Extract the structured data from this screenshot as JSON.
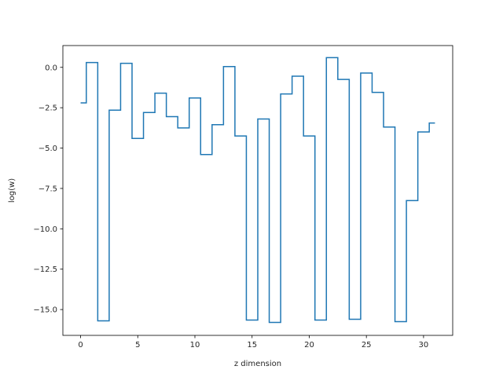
{
  "chart_data": {
    "type": "line",
    "drawstyle": "steps-mid",
    "title": "",
    "xlabel": "z dimension",
    "ylabel": "log(w)",
    "xlim": [
      -1.55,
      32.55
    ],
    "ylim": [
      -16.6,
      1.35
    ],
    "xticks": [
      0,
      5,
      10,
      15,
      20,
      25,
      30
    ],
    "xtick_labels": [
      "0",
      "5",
      "10",
      "15",
      "20",
      "25",
      "30"
    ],
    "yticks": [
      0.0,
      -2.5,
      -5.0,
      -7.5,
      -10.0,
      -12.5,
      -15.0
    ],
    "ytick_labels": [
      "0.0",
      "−2.5",
      "−5.0",
      "−7.5",
      "−10.0",
      "−12.5",
      "−15.0"
    ],
    "grid": false,
    "legend": "none",
    "series": [
      {
        "color": "#1f77b4",
        "x": [
          0,
          1,
          2,
          3,
          4,
          5,
          6,
          7,
          8,
          9,
          10,
          11,
          12,
          13,
          14,
          15,
          16,
          17,
          18,
          19,
          20,
          21,
          22,
          23,
          24,
          25,
          26,
          27,
          28,
          29,
          30,
          31
        ],
        "y": [
          -2.2,
          0.3,
          -15.7,
          -2.65,
          0.25,
          -4.4,
          -2.8,
          -1.6,
          -3.05,
          -3.75,
          -1.9,
          -5.4,
          -3.55,
          0.05,
          -4.25,
          -15.65,
          -3.2,
          -15.8,
          -1.65,
          -0.55,
          -4.25,
          -15.65,
          0.6,
          -0.75,
          -15.6,
          -0.35,
          -1.55,
          -3.7,
          -15.75,
          -8.25,
          -4.0,
          -3.45
        ]
      }
    ]
  }
}
